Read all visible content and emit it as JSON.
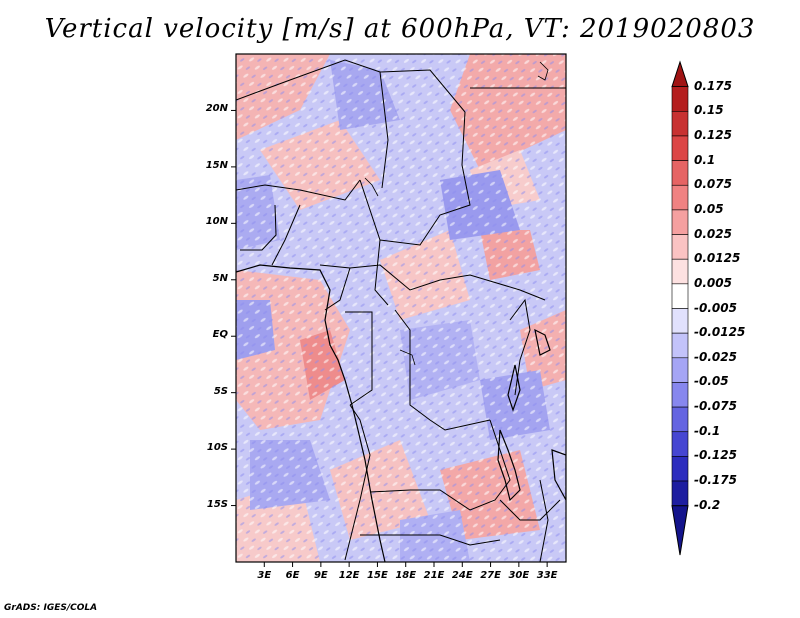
{
  "title": "Vertical velocity [m/s] at 600hPa, VT: 2019020803",
  "footer": "GrADS: IGES/COLA",
  "lat_axis": {
    "labels": [
      "20N",
      "15N",
      "10N",
      "5N",
      "EQ",
      "5S",
      "10S",
      "15S"
    ],
    "values": [
      20,
      15,
      10,
      5,
      0,
      -5,
      -10,
      -15
    ],
    "range": [
      -20,
      25
    ]
  },
  "lon_axis": {
    "labels": [
      "3E",
      "6E",
      "9E",
      "12E",
      "15E",
      "18E",
      "21E",
      "24E",
      "27E",
      "30E",
      "33E"
    ],
    "values": [
      3,
      6,
      9,
      12,
      15,
      18,
      21,
      24,
      27,
      30,
      33
    ],
    "range": [
      0,
      35
    ]
  },
  "colorbar": {
    "labels": [
      "0.175",
      "0.15",
      "0.125",
      "0.1",
      "0.075",
      "0.05",
      "0.025",
      "0.0125",
      "0.005",
      "-0.005",
      "-0.0125",
      "-0.025",
      "-0.05",
      "-0.075",
      "-0.1",
      "-0.125",
      "-0.175",
      "-0.2"
    ],
    "colors": [
      "#a01414",
      "#b41e1e",
      "#c83232",
      "#dc4646",
      "#e66464",
      "#f08282",
      "#f5a0a0",
      "#fac3c3",
      "#fde1e1",
      "#ffffff",
      "#e1e1fd",
      "#c3c3fa",
      "#a5a5f5",
      "#8787ee",
      "#6464e1",
      "#4646d2",
      "#2d2dbe",
      "#1e1ea0",
      "#14148c"
    ]
  }
}
